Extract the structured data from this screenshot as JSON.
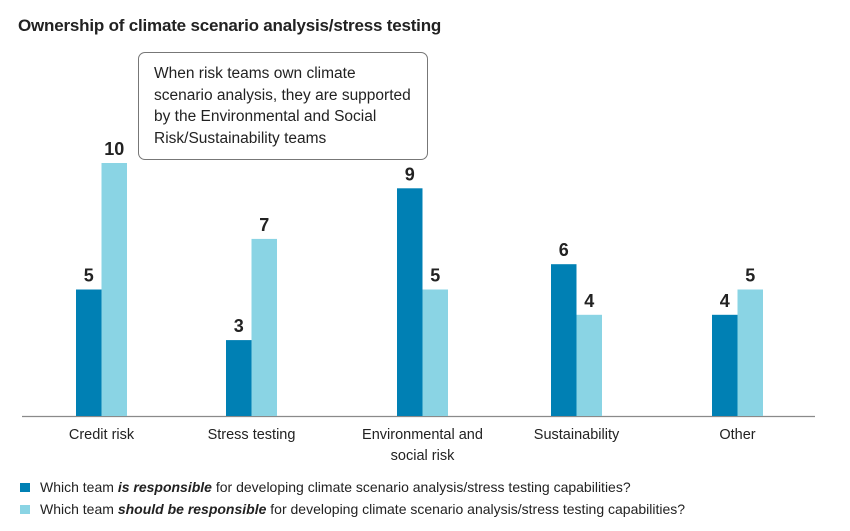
{
  "chart_data": {
    "type": "bar",
    "title": "Ownership of climate scenario analysis/stress testing",
    "categories": [
      "Credit risk",
      "Stress testing",
      "Environmental and social risk",
      "Sustainability",
      "Other"
    ],
    "category_lines": [
      [
        "Credit risk"
      ],
      [
        "Stress testing"
      ],
      [
        "Environmental and",
        "social risk"
      ],
      [
        "Sustainability"
      ],
      [
        "Other"
      ]
    ],
    "series": [
      {
        "name": "is responsible",
        "color": "#0080b4",
        "values": [
          5,
          3,
          9,
          6,
          4
        ]
      },
      {
        "name": "should be responsible",
        "color": "#8ad4e4",
        "values": [
          10,
          7,
          5,
          4,
          5
        ]
      }
    ],
    "xlabel": "",
    "ylabel": "",
    "ylim": [
      0,
      10
    ],
    "grid": false,
    "legend_position": "bottom-left",
    "annotation": "When risk teams own climate scenario analysis, they are supported by the Environmental and Social Risk/Sustainability teams"
  },
  "legend": [
    {
      "prefix": "Which team ",
      "emphasis": "is responsible",
      "suffix": " for developing climate scenario analysis/stress testing capabilities?",
      "color": "#0080b4"
    },
    {
      "prefix": "Which team ",
      "emphasis": "should be responsible",
      "suffix": " for developing climate scenario analysis/stress testing capabilities?",
      "color": "#8ad4e4"
    }
  ]
}
